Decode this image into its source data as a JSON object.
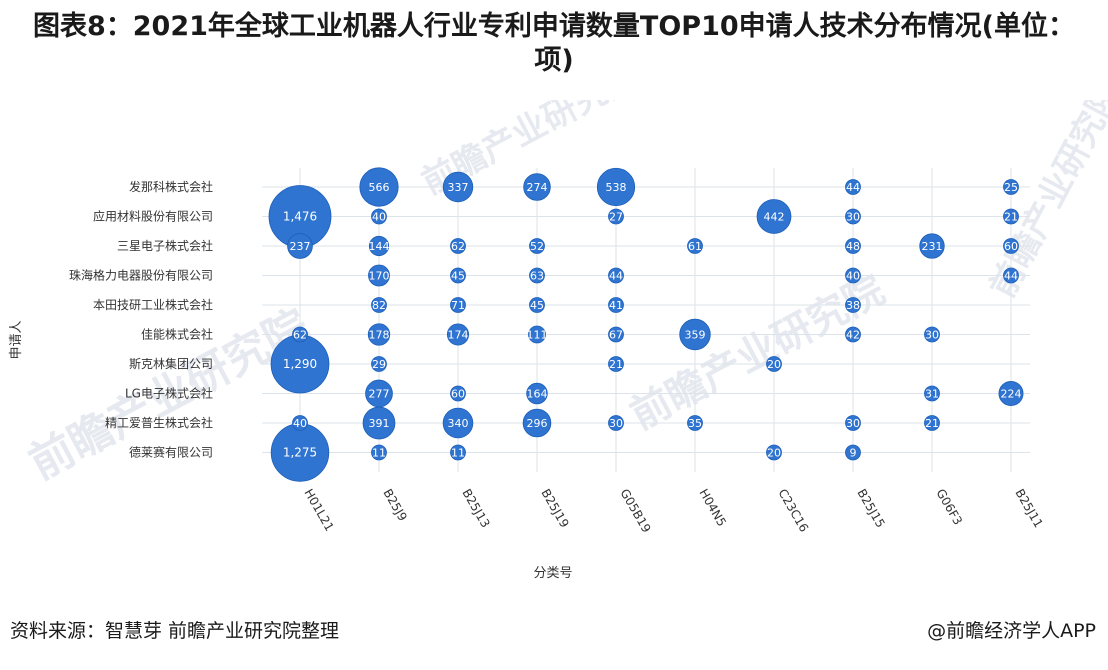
{
  "title": "图表8：2021年全球工业机器人行业专利申请数量TOP10申请人技术分布情况(单位：项)",
  "source": "资料来源：智慧芽 前瞻产业研究院整理",
  "brand": "@前瞻经济学人APP",
  "watermark_text": "前瞻产业研究院",
  "colors": {
    "bubble": "#2f74d0",
    "bubble_stroke": "#1e5fb8",
    "grid": "#dde3ea",
    "label": "#333333",
    "watermark": "#e6eaf0"
  },
  "chart_data": {
    "type": "scatter",
    "subtype": "bubble",
    "xlabel": "分类号",
    "ylabel": "申请人",
    "x_categories": [
      "H01L21",
      "B25J9",
      "B25J13",
      "B25J19",
      "G05B19",
      "H04N5",
      "C23C16",
      "B25J15",
      "G06F3",
      "B25J11"
    ],
    "y_categories": [
      "发那科株式会社",
      "应用材料股份有限公司",
      "三星电子株式会社",
      "珠海格力电器股份有限公司",
      "本田技研工业株式会社",
      "佳能株式会社",
      "斯克林集团公司",
      "LG电子株式会社",
      "精工爱普生株式会社",
      "德莱赛有限公司"
    ],
    "points": [
      {
        "x": "B25J9",
        "y": "发那科株式会社",
        "value": 566
      },
      {
        "x": "B25J13",
        "y": "发那科株式会社",
        "value": 337
      },
      {
        "x": "B25J19",
        "y": "发那科株式会社",
        "value": 274
      },
      {
        "x": "G05B19",
        "y": "发那科株式会社",
        "value": 538
      },
      {
        "x": "B25J15",
        "y": "发那科株式会社",
        "value": 44
      },
      {
        "x": "B25J11",
        "y": "发那科株式会社",
        "value": 25
      },
      {
        "x": "H01L21",
        "y": "应用材料股份有限公司",
        "value": 1476
      },
      {
        "x": "B25J9",
        "y": "应用材料股份有限公司",
        "value": 40
      },
      {
        "x": "G05B19",
        "y": "应用材料股份有限公司",
        "value": 27
      },
      {
        "x": "C23C16",
        "y": "应用材料股份有限公司",
        "value": 442
      },
      {
        "x": "B25J15",
        "y": "应用材料股份有限公司",
        "value": 30
      },
      {
        "x": "B25J11",
        "y": "应用材料股份有限公司",
        "value": 21
      },
      {
        "x": "H01L21",
        "y": "三星电子株式会社",
        "value": 237
      },
      {
        "x": "B25J9",
        "y": "三星电子株式会社",
        "value": 144
      },
      {
        "x": "B25J13",
        "y": "三星电子株式会社",
        "value": 62
      },
      {
        "x": "B25J19",
        "y": "三星电子株式会社",
        "value": 52
      },
      {
        "x": "H04N5",
        "y": "三星电子株式会社",
        "value": 61
      },
      {
        "x": "B25J15",
        "y": "三星电子株式会社",
        "value": 48
      },
      {
        "x": "G06F3",
        "y": "三星电子株式会社",
        "value": 231
      },
      {
        "x": "B25J11",
        "y": "三星电子株式会社",
        "value": 60
      },
      {
        "x": "B25J9",
        "y": "珠海格力电器股份有限公司",
        "value": 170
      },
      {
        "x": "B25J13",
        "y": "珠海格力电器股份有限公司",
        "value": 45
      },
      {
        "x": "B25J19",
        "y": "珠海格力电器股份有限公司",
        "value": 63
      },
      {
        "x": "G05B19",
        "y": "珠海格力电器股份有限公司",
        "value": 44
      },
      {
        "x": "B25J15",
        "y": "珠海格力电器股份有限公司",
        "value": 40
      },
      {
        "x": "B25J11",
        "y": "珠海格力电器股份有限公司",
        "value": 44
      },
      {
        "x": "B25J9",
        "y": "本田技研工业株式会社",
        "value": 82
      },
      {
        "x": "B25J13",
        "y": "本田技研工业株式会社",
        "value": 71
      },
      {
        "x": "B25J19",
        "y": "本田技研工业株式会社",
        "value": 45
      },
      {
        "x": "G05B19",
        "y": "本田技研工业株式会社",
        "value": 41
      },
      {
        "x": "B25J15",
        "y": "本田技研工业株式会社",
        "value": 38
      },
      {
        "x": "H01L21",
        "y": "佳能株式会社",
        "value": 62
      },
      {
        "x": "B25J9",
        "y": "佳能株式会社",
        "value": 178
      },
      {
        "x": "B25J13",
        "y": "佳能株式会社",
        "value": 174
      },
      {
        "x": "B25J19",
        "y": "佳能株式会社",
        "value": 111
      },
      {
        "x": "G05B19",
        "y": "佳能株式会社",
        "value": 67
      },
      {
        "x": "H04N5",
        "y": "佳能株式会社",
        "value": 359
      },
      {
        "x": "B25J15",
        "y": "佳能株式会社",
        "value": 42
      },
      {
        "x": "G06F3",
        "y": "佳能株式会社",
        "value": 30
      },
      {
        "x": "H01L21",
        "y": "斯克林集团公司",
        "value": 1290
      },
      {
        "x": "B25J9",
        "y": "斯克林集团公司",
        "value": 29
      },
      {
        "x": "G05B19",
        "y": "斯克林集团公司",
        "value": 21
      },
      {
        "x": "C23C16",
        "y": "斯克林集团公司",
        "value": 20
      },
      {
        "x": "B25J9",
        "y": "LG电子株式会社",
        "value": 277
      },
      {
        "x": "B25J13",
        "y": "LG电子株式会社",
        "value": 60
      },
      {
        "x": "B25J19",
        "y": "LG电子株式会社",
        "value": 164
      },
      {
        "x": "G06F3",
        "y": "LG电子株式会社",
        "value": 31
      },
      {
        "x": "B25J11",
        "y": "LG电子株式会社",
        "value": 224
      },
      {
        "x": "H01L21",
        "y": "精工爱普生株式会社",
        "value": 40
      },
      {
        "x": "B25J9",
        "y": "精工爱普生株式会社",
        "value": 391
      },
      {
        "x": "B25J13",
        "y": "精工爱普生株式会社",
        "value": 340
      },
      {
        "x": "B25J19",
        "y": "精工爱普生株式会社",
        "value": 296
      },
      {
        "x": "G05B19",
        "y": "精工爱普生株式会社",
        "value": 30
      },
      {
        "x": "H04N5",
        "y": "精工爱普生株式会社",
        "value": 35
      },
      {
        "x": "B25J15",
        "y": "精工爱普生株式会社",
        "value": 30
      },
      {
        "x": "G06F3",
        "y": "精工爱普生株式会社",
        "value": 21
      },
      {
        "x": "H01L21",
        "y": "德莱赛有限公司",
        "value": 1275
      },
      {
        "x": "B25J9",
        "y": "德莱赛有限公司",
        "value": 11
      },
      {
        "x": "B25J13",
        "y": "德莱赛有限公司",
        "value": 11
      },
      {
        "x": "C23C16",
        "y": "德莱赛有限公司",
        "value": 20
      },
      {
        "x": "B25J15",
        "y": "德莱赛有限公司",
        "value": 9
      }
    ],
    "grid": true,
    "legend": "none"
  }
}
